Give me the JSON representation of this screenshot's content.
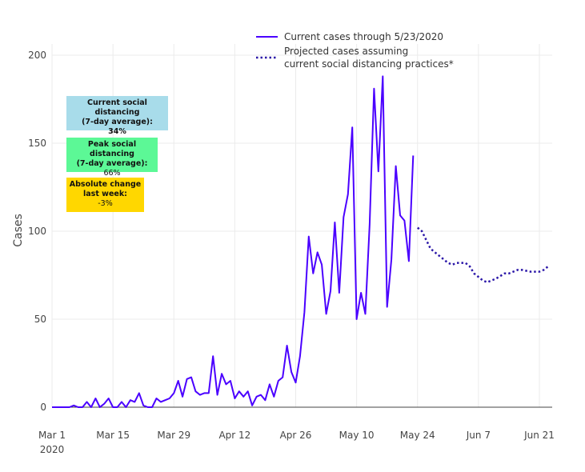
{
  "chart_data": {
    "type": "line",
    "xlabel": "",
    "ylabel": "Cases",
    "ylim": [
      0,
      200
    ],
    "yticks": [
      0,
      50,
      100,
      150,
      200
    ],
    "xticks": [
      {
        "day": 0,
        "label": "Mar 1",
        "sublabel": "2020"
      },
      {
        "day": 14,
        "label": "Mar 15"
      },
      {
        "day": 28,
        "label": "Mar 29"
      },
      {
        "day": 42,
        "label": "Apr 12"
      },
      {
        "day": 56,
        "label": "Apr 26"
      },
      {
        "day": 70,
        "label": "May 10"
      },
      {
        "day": 84,
        "label": "May 24"
      },
      {
        "day": 98,
        "label": "Jun 7"
      },
      {
        "day": 112,
        "label": "Jun 21"
      }
    ],
    "x_start_date": "2020-03-01",
    "grid": true,
    "legend_placement": "top-center",
    "series": [
      {
        "name": "Current cases through 5/23/2020",
        "style": "solid",
        "color": "#4a00ff",
        "start_day": 0,
        "values": [
          0,
          0,
          0,
          0,
          0,
          1,
          0,
          0,
          3,
          0,
          5,
          0,
          2,
          5,
          0,
          0,
          3,
          0,
          4,
          3,
          8,
          1,
          0,
          0,
          5,
          3,
          4,
          5,
          8,
          15,
          6,
          16,
          17,
          9,
          7,
          8,
          8,
          29,
          7,
          19,
          13,
          15,
          5,
          9,
          6,
          9,
          1,
          6,
          7,
          4,
          13,
          6,
          15,
          17,
          35,
          20,
          14,
          29,
          54,
          97,
          76,
          88,
          81,
          53,
          66,
          105,
          65,
          108,
          121,
          159,
          50,
          65,
          53,
          104,
          181,
          134,
          188,
          57,
          84,
          137,
          109,
          106,
          83,
          143
        ]
      },
      {
        "name": "Projected cases assuming current social distancing practices*",
        "style": "dotted",
        "color": "#2b17a8",
        "start_day": 84,
        "values": [
          102,
          100,
          95,
          90,
          88,
          86,
          84,
          82,
          81,
          82,
          82,
          82,
          80,
          76,
          74,
          72,
          71,
          72,
          73,
          74.5,
          76,
          76,
          77,
          78,
          78,
          77.5,
          77,
          77,
          77,
          78,
          80
        ]
      }
    ]
  },
  "legend": {
    "current": "Current cases through 5/23/2020",
    "projected_line1": "Projected cases assuming",
    "projected_line2": "current social distancing practices*"
  },
  "annotations": [
    {
      "title1": "Current social distancing",
      "title2": "(7-day average):",
      "value": "34%",
      "color": "#a8dcea"
    },
    {
      "title1": "Peak social distancing",
      "title2": "(7-day average):",
      "value": "66%",
      "color": "#5cf896"
    },
    {
      "title1": "Absolute change",
      "title2": "last week:",
      "value": "-3%",
      "color": "#ffd700"
    }
  ]
}
